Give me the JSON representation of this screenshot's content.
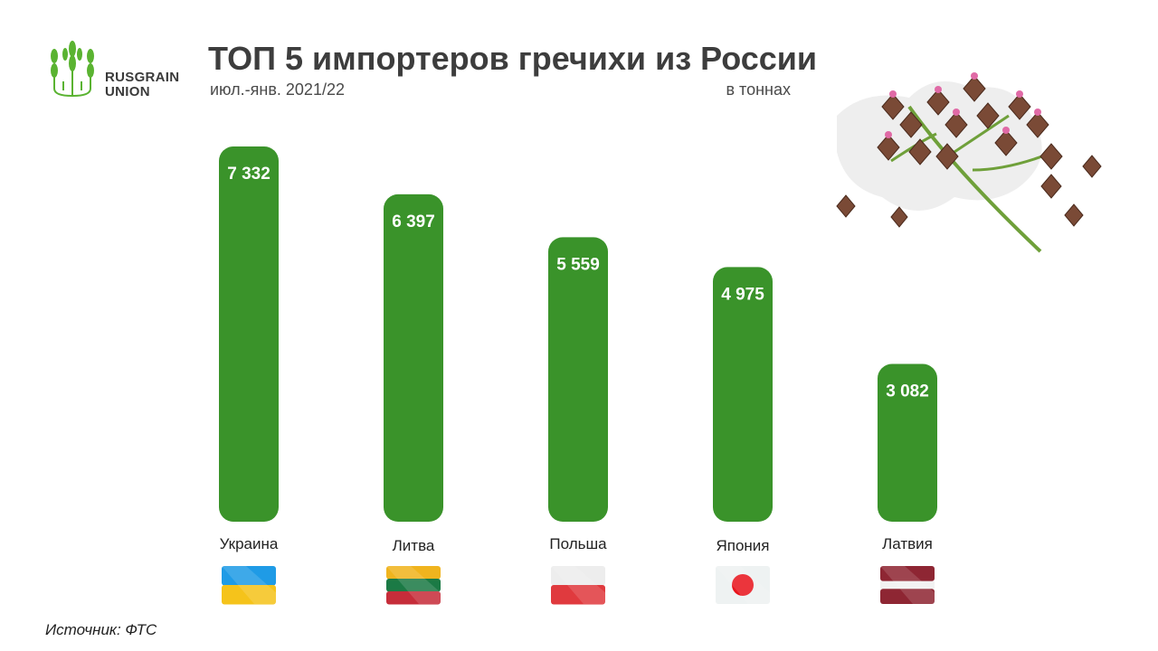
{
  "logo": {
    "line1": "RUSGRAIN",
    "line2": "UNION"
  },
  "header": {
    "title": "ТОП 5 импортеров гречихи из России",
    "subtitle": "июл.-янв.  2021/22",
    "units": "в тоннах"
  },
  "source": "Источник: ФТС",
  "colors": {
    "bar": "#3a932a",
    "bar_label": "#ffffff",
    "text": "#3d3d3d",
    "logo": "#5ab331"
  },
  "chart_data": {
    "type": "bar",
    "categories": [
      "Украина",
      "Литва",
      "Польша",
      "Япония",
      "Латвия"
    ],
    "values": [
      7332,
      6397,
      5559,
      4975,
      3082
    ],
    "value_labels": [
      "7 332",
      "6 397",
      "5 559",
      "4 975",
      "3 082"
    ],
    "flag_icons": [
      "ukraine-flag-icon",
      "lithuania-flag-icon",
      "poland-flag-icon",
      "japan-flag-icon",
      "latvia-flag-icon"
    ],
    "title": "ТОП 5 импортеров гречихи из России",
    "xlabel": "",
    "ylabel": "",
    "grid": false,
    "legend": "none"
  }
}
